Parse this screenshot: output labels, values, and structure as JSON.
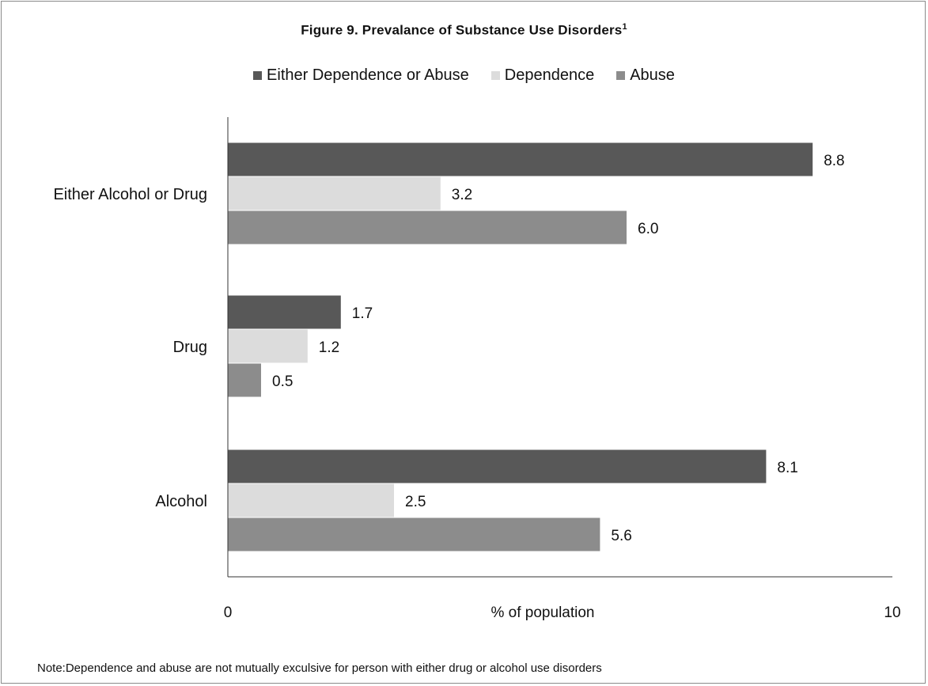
{
  "title": "Figure 9.  Prevalance of Substance Use Disorders",
  "title_sup": "1",
  "note": "Note:Dependence and abuse are not mutually exculsive for person with either drug or alcohol use disorders",
  "colors": {
    "either": "#585858",
    "dependence": "#dcdcdc",
    "abuse": "#8c8c8c",
    "axis": "#333333"
  },
  "chart_data": {
    "type": "bar",
    "orientation": "horizontal",
    "title": "Figure 9.  Prevalance of Substance Use Disorders",
    "xlabel": "% of population",
    "ylabel": "",
    "xlim": [
      0,
      10
    ],
    "x_ticks": [
      "0",
      "10"
    ],
    "grid": false,
    "legend_position": "top",
    "categories": [
      "Either Alcohol or Drug",
      "Drug",
      "Alcohol"
    ],
    "series": [
      {
        "name": "Either Dependence or Abuse",
        "color_key": "either",
        "values": [
          8.8,
          1.7,
          8.1
        ],
        "labels": [
          "8.8",
          "1.7",
          "8.1"
        ]
      },
      {
        "name": "Dependence",
        "color_key": "dependence",
        "values": [
          3.2,
          1.2,
          2.5
        ],
        "labels": [
          "3.2",
          "1.2",
          "2.5"
        ]
      },
      {
        "name": "Abuse",
        "color_key": "abuse",
        "values": [
          6.0,
          0.5,
          5.6
        ],
        "labels": [
          "6.0",
          "0.5",
          "5.6"
        ]
      }
    ]
  }
}
